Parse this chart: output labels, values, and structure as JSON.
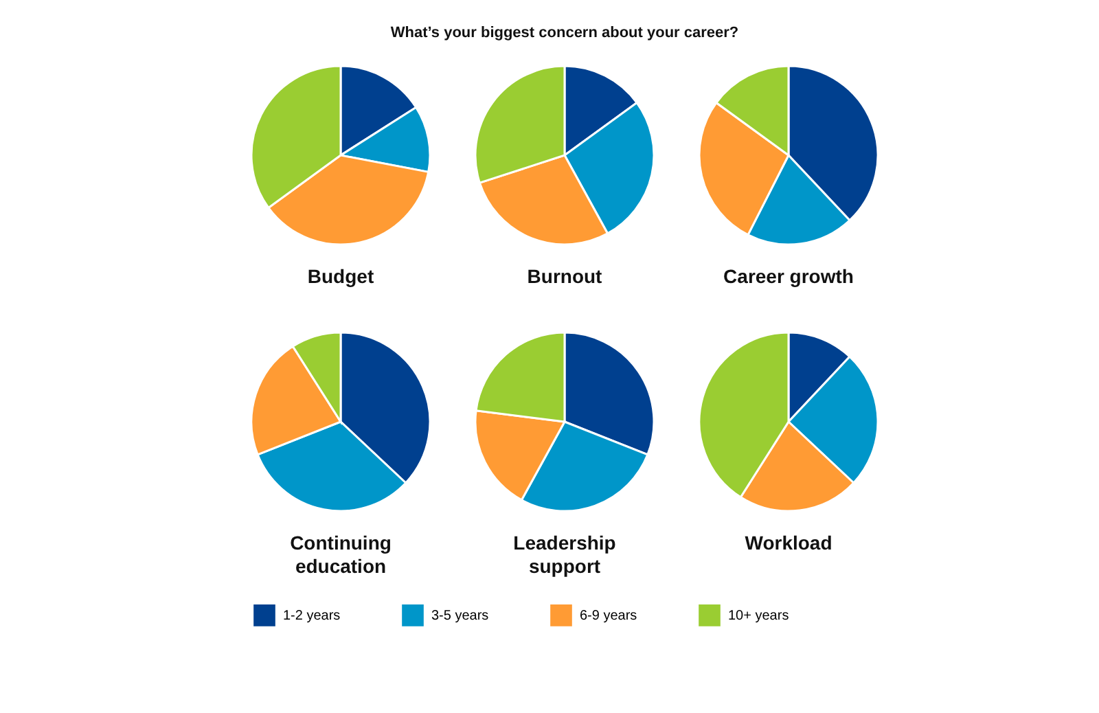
{
  "chart_data": [
    {
      "type": "pie",
      "title": "Budget",
      "annotations": [
        "What’s your biggest concern about your career?"
      ],
      "legend": "bottom",
      "categories": [
        "1-2 years",
        "3-5 years",
        "6-9 years",
        "10+ years"
      ],
      "colors": [
        "#00408f",
        "#0096c9",
        "#ff9b34",
        "#9acd32"
      ],
      "values": [
        16,
        12,
        37,
        35
      ]
    },
    {
      "type": "pie",
      "title": "Burnout",
      "colors": [
        "#00408f",
        "#0096c9",
        "#ff9b34",
        "#9acd32"
      ],
      "values": [
        15,
        27,
        28,
        30
      ]
    },
    {
      "type": "pie",
      "title": "Career growth",
      "colors": [
        "#00408f",
        "#0096c9",
        "#ff9b34",
        "#9acd32"
      ],
      "values": [
        38,
        19.5,
        27.5,
        15
      ]
    },
    {
      "type": "pie",
      "title": "Continuing education",
      "colors": [
        "#00408f",
        "#0096c9",
        "#ff9b34",
        "#9acd32"
      ],
      "values": [
        37,
        32,
        22,
        9
      ]
    },
    {
      "type": "pie",
      "title": "Leadership support",
      "colors": [
        "#00408f",
        "#0096c9",
        "#ff9b34",
        "#9acd32"
      ],
      "values": [
        31,
        27,
        19,
        23
      ]
    },
    {
      "type": "pie",
      "title": "Workload",
      "colors": [
        "#00408f",
        "#0096c9",
        "#ff9b34",
        "#9acd32"
      ],
      "values": [
        12,
        25,
        22,
        41
      ]
    }
  ]
}
